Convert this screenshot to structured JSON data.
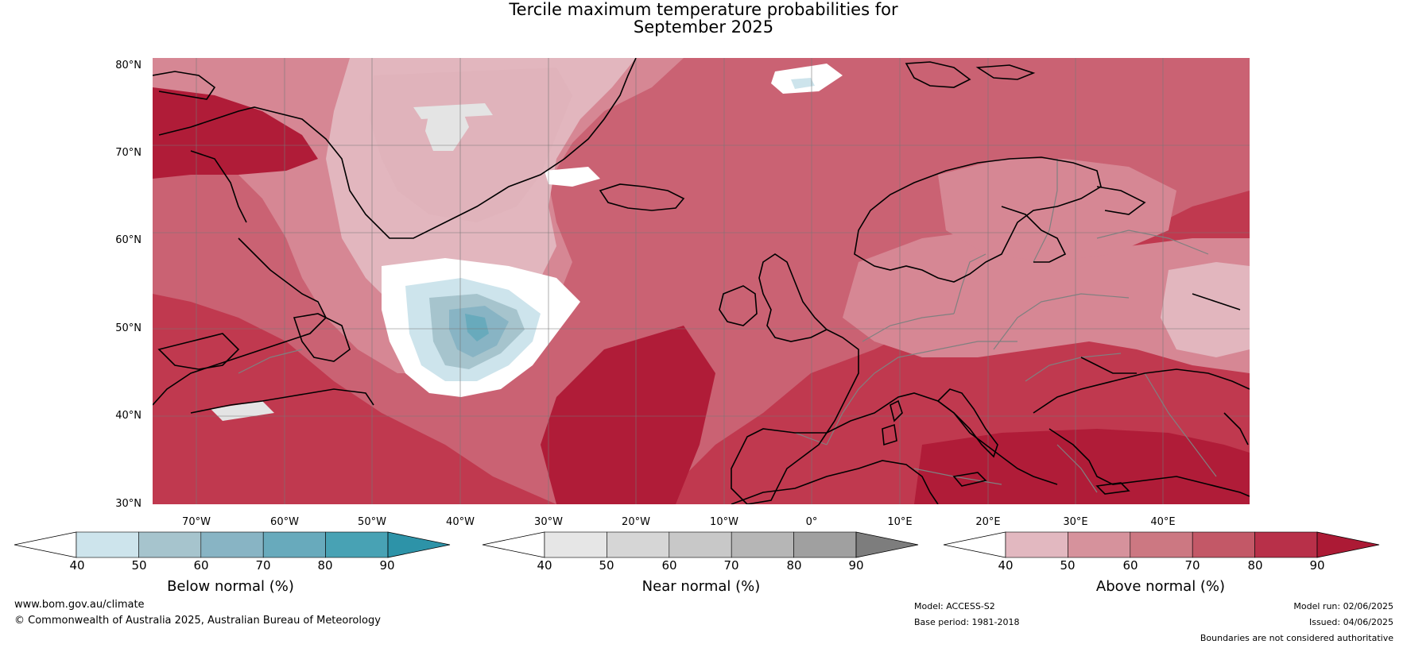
{
  "title": {
    "line1": "Tercile maximum temperature probabilities for",
    "line2": "September 2025"
  },
  "latitude_labels": [
    "80°N",
    "70°N",
    "60°N",
    "50°N",
    "40°N",
    "30°N"
  ],
  "longitude_labels": [
    "70°W",
    "60°W",
    "50°W",
    "40°W",
    "30°W",
    "20°W",
    "10°W",
    "0°",
    "10°E",
    "20°E",
    "30°E",
    "40°E"
  ],
  "colorbars": [
    {
      "title": "Below normal (%)",
      "ticks": [
        "40",
        "50",
        "60",
        "70",
        "80",
        "90"
      ],
      "colors": [
        "#ffffff",
        "#cde4ec",
        "#a6c4cd",
        "#88b4c4",
        "#68aabc",
        "#48a2b4",
        "#2d93a8"
      ]
    },
    {
      "title": "Near normal (%)",
      "ticks": [
        "40",
        "50",
        "60",
        "70",
        "80",
        "90"
      ],
      "colors": [
        "#ffffff",
        "#e6e6e6",
        "#d6d6d6",
        "#c8c8c8",
        "#b6b6b6",
        "#a0a0a0",
        "#7d7d7d"
      ]
    },
    {
      "title": "Above normal (%)",
      "ticks": [
        "40",
        "50",
        "60",
        "70",
        "80",
        "90"
      ],
      "colors": [
        "#ffffff",
        "#e2b8c0",
        "#d6929c",
        "#cc7882",
        "#c35867",
        "#b83049",
        "#ac1a35"
      ]
    }
  ],
  "footer": {
    "website": "www.bom.gov.au/climate",
    "copyright": "© Commonwealth of Australia 2025, Australian Bureau of Meteorology"
  },
  "metadata": {
    "model": "Model: ACCESS-S2",
    "base_period": "Base period: 1981-2018",
    "model_run": "Model run: 02/06/2025",
    "issued": "Issued: 04/06/2025",
    "disclaimer": "Boundaries are not considered authoritative"
  },
  "map_colors": {
    "above_90": "#b01c38",
    "above_80": "#c0394f",
    "above_70": "#ca6273",
    "above_60": "#d68794",
    "above_50": "#e2b6be",
    "near_50": "#e4e4e4",
    "below_50": "#cde4ec",
    "below_60": "#a6c4cd",
    "below_70": "#88b4c4",
    "below_80": "#68aabc",
    "coastline": "#000000",
    "border": "#808080",
    "gridline": "#777777"
  }
}
